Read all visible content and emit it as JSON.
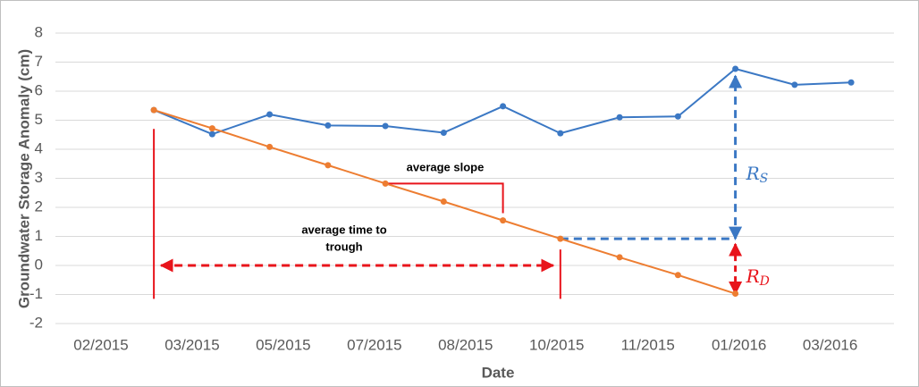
{
  "chart_data": {
    "type": "line",
    "y_label": "Groundwater Storage Anomaly  (cm)",
    "x_label": "Date",
    "x": [
      0.58,
      1.22,
      1.85,
      2.49,
      3.12,
      3.76,
      4.41,
      5.04,
      5.69,
      6.33,
      6.96,
      7.61,
      8.23
    ],
    "series": [
      {
        "color": "#3b78c4",
        "values": [
          5.35,
          4.52,
          5.2,
          4.82,
          4.8,
          4.57,
          5.48,
          4.55,
          5.1,
          5.13,
          6.77,
          6.22,
          6.3
        ]
      },
      {
        "color": "#ed7d31",
        "values": [
          5.35,
          4.72,
          4.08,
          3.45,
          2.82,
          2.2,
          1.55,
          0.92,
          0.28,
          -0.33,
          -0.97,
          null,
          null
        ]
      }
    ],
    "xlim": [
      -0.5,
      8.7
    ],
    "xticks": [
      {
        "value": 0,
        "label": "02/2015"
      },
      {
        "value": 1,
        "label": "03/2015"
      },
      {
        "value": 2,
        "label": "05/2015"
      },
      {
        "value": 3,
        "label": "07/2015"
      },
      {
        "value": 4,
        "label": "08/2015"
      },
      {
        "value": 5,
        "label": "10/2015"
      },
      {
        "value": 6,
        "label": "11/2015"
      },
      {
        "value": 7,
        "label": "01/2016"
      },
      {
        "value": 8,
        "label": "03/2016"
      }
    ],
    "ylim": [
      -2,
      8
    ],
    "yticks": [
      -2,
      -1,
      0,
      1,
      2,
      3,
      4,
      5,
      6,
      7,
      8
    ],
    "grid": true,
    "annotations": {
      "slope": "average slope",
      "trough": [
        "average time to",
        "trough"
      ],
      "rs": {
        "main": "R",
        "sub": "S"
      },
      "rd": {
        "main": "R",
        "sub": "D"
      }
    }
  }
}
